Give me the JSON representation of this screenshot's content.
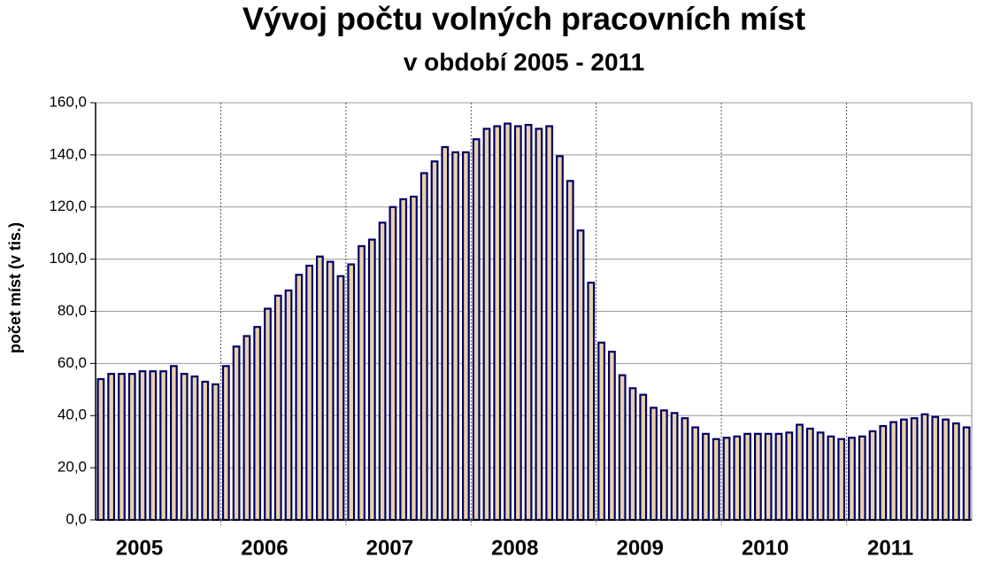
{
  "chart_data": {
    "type": "bar",
    "title": "Vývoj počtu volných pracovních míst",
    "subtitle": "v období 2005 - 2011",
    "ylabel": "počet míst (v tis.)",
    "groups": [
      "2005",
      "2006",
      "2007",
      "2008",
      "2009",
      "2010",
      "2011"
    ],
    "categories": [
      null,
      null,
      null,
      null,
      null,
      null,
      null,
      null,
      null,
      null,
      null,
      null,
      null,
      null,
      null,
      null,
      null,
      null,
      null,
      null,
      null,
      null,
      null,
      null,
      null,
      null,
      null,
      null,
      null,
      null,
      null,
      null,
      null,
      null,
      null,
      null,
      null,
      null,
      null,
      null,
      null,
      null,
      null,
      null,
      null,
      null,
      null,
      null,
      null,
      null,
      null,
      null,
      null,
      null,
      null,
      null,
      null,
      null,
      null,
      null,
      null,
      null,
      null,
      null,
      null,
      null,
      null,
      null,
      null,
      null,
      null,
      null,
      null,
      null,
      null,
      null,
      null,
      null,
      null,
      null,
      null,
      null,
      null,
      null
    ],
    "values": [
      54,
      56,
      56,
      56,
      57,
      57,
      57,
      59,
      56,
      55,
      53,
      52,
      59,
      66.5,
      70.5,
      74,
      81,
      86,
      88,
      94,
      97.5,
      101,
      99,
      93.5,
      98,
      105,
      107.5,
      114,
      120,
      123,
      124,
      133,
      137.5,
      143,
      141,
      141,
      146,
      150,
      151,
      152,
      151,
      151.5,
      150,
      151,
      139.5,
      130,
      111,
      91,
      68,
      64.5,
      55.5,
      50.5,
      48,
      43,
      42,
      41,
      39,
      35.5,
      33,
      31,
      31.5,
      32,
      33,
      33,
      33,
      33,
      33.5,
      36.5,
      35,
      33.5,
      32,
      31,
      31.5,
      32,
      34,
      36,
      37.5,
      38.5,
      39,
      40.5,
      39.5,
      38.5,
      37,
      35.5
    ],
    "color": "#e8d2a8",
    "edge_color": "#000066",
    "ylim": [
      0,
      160
    ],
    "yticks": [
      {
        "value": 0,
        "label": "0,0"
      },
      {
        "value": 20,
        "label": "20,0"
      },
      {
        "value": 40,
        "label": "40,0"
      },
      {
        "value": 60,
        "label": "60,0"
      },
      {
        "value": 80,
        "label": "80,0"
      },
      {
        "value": 100,
        "label": "100,0"
      },
      {
        "value": 120,
        "label": "120,0"
      },
      {
        "value": 140,
        "label": "140,0"
      },
      {
        "value": 160,
        "label": "160,0"
      }
    ],
    "grid": true
  }
}
